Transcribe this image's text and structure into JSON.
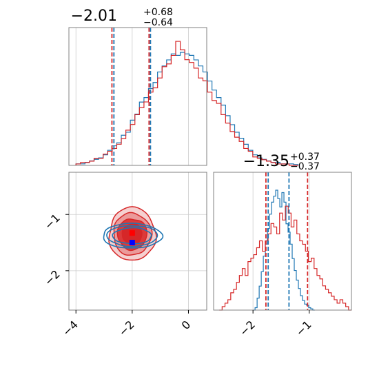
{
  "colors": {
    "series_a": "#1f77b4",
    "series_b": "#d62728",
    "grid": "#cccccc",
    "axis": "#808080",
    "marker_a": "#0000ff",
    "marker_b": "#ff0000"
  },
  "chart_data": [
    {
      "type": "histogram",
      "panel": "top-left",
      "title_main": "−2.01",
      "title_sup": "+0.68",
      "title_sub": "−0.64",
      "xlim": [
        -4.25,
        0.65
      ],
      "grid": true,
      "vlines": {
        "series_a": [
          -2.65,
          -1.35
        ],
        "series_b": [
          -2.72,
          -1.4
        ]
      },
      "series": [
        {
          "color": "#1f77b4",
          "edges": [
            -4.0,
            3.9
          ],
          "values": [
            0.01,
            0.01,
            0.02,
            0.03,
            0.04,
            0.05,
            0.07,
            0.1,
            0.13,
            0.15,
            0.2,
            0.22,
            0.3,
            0.34,
            0.42,
            0.45,
            0.51,
            0.55,
            0.62,
            0.66,
            0.7,
            0.74,
            0.73,
            0.75,
            0.74,
            0.73,
            0.7,
            0.66,
            0.62,
            0.56,
            0.5,
            0.45,
            0.4,
            0.33,
            0.27,
            0.22,
            0.18,
            0.14,
            0.1,
            0.07,
            0.05,
            0.04,
            0.03,
            0.02,
            0.02,
            0.01,
            0.01,
            0.01,
            0.005
          ]
        },
        {
          "color": "#d62728",
          "values": [
            0.01,
            0.02,
            0.02,
            0.03,
            0.05,
            0.05,
            0.08,
            0.1,
            0.12,
            0.15,
            0.19,
            0.25,
            0.29,
            0.36,
            0.41,
            0.45,
            0.52,
            0.55,
            0.62,
            0.7,
            0.72,
            0.78,
            0.88,
            0.82,
            0.75,
            0.73,
            0.69,
            0.62,
            0.6,
            0.52,
            0.46,
            0.44,
            0.36,
            0.3,
            0.24,
            0.2,
            0.17,
            0.12,
            0.1,
            0.06,
            0.05,
            0.04,
            0.03,
            0.02,
            0.01,
            0.01,
            0.01,
            0.0,
            0.0
          ]
        }
      ]
    },
    {
      "type": "histogram",
      "panel": "bottom-right",
      "title_main": "−1.35",
      "title_sup": "+0.37",
      "title_sub": "−0.37",
      "xlim": [
        -2.7,
        -0.25
      ],
      "xticks": [
        -2,
        -1
      ],
      "xtick_labels": [
        "−2",
        "−1"
      ],
      "grid": true,
      "vlines": {
        "series_a": [
          -1.73,
          -1.36
        ],
        "series_b": [
          -1.77,
          -1.03
        ]
      },
      "series": [
        {
          "color": "#1f77b4",
          "edges": [
            -2.0,
            -0.9
          ],
          "values": [
            0.0,
            0.02,
            0.1,
            0.2,
            0.32,
            0.45,
            0.55,
            0.68,
            0.8,
            0.9,
            0.95,
            1.0,
            0.93,
            0.86,
            0.98,
            0.9,
            0.72,
            0.65,
            0.55,
            0.43,
            0.33,
            0.25,
            0.18,
            0.12,
            0.08,
            0.05,
            0.04,
            0.02,
            0.01,
            0.0
          ]
        },
        {
          "color": "#d62728",
          "edges": [
            -2.6,
            -0.25
          ],
          "values": [
            0.0,
            0.01,
            0.02,
            0.03,
            0.05,
            0.06,
            0.08,
            0.1,
            0.12,
            0.1,
            0.14,
            0.15,
            0.16,
            0.18,
            0.2,
            0.17,
            0.2,
            0.22,
            0.25,
            0.24,
            0.22,
            0.28,
            0.26,
            0.3,
            0.28,
            0.24,
            0.26,
            0.22,
            0.2,
            0.19,
            0.17,
            0.14,
            0.15,
            0.12,
            0.1,
            0.09,
            0.07,
            0.06,
            0.05,
            0.04,
            0.03,
            0.02,
            0.03,
            0.02,
            0.01,
            0.0
          ]
        }
      ]
    },
    {
      "type": "contour",
      "panel": "bottom-left",
      "xlim": [
        -4.25,
        0.65
      ],
      "ylim": [
        -2.7,
        -0.25
      ],
      "xticks": [
        -4,
        -2,
        0
      ],
      "xtick_labels": [
        "−4",
        "−2",
        "0"
      ],
      "yticks": [
        -2,
        -1
      ],
      "ytick_labels": [
        "−2",
        "−1"
      ],
      "grid": true,
      "series": [
        {
          "color": "#d62728",
          "center": [
            -2.0,
            -1.35
          ],
          "levels": [
            {
              "rx": 1.65,
              "ry": 0.95,
              "fill": "#f5d0d0"
            },
            {
              "rx": 1.35,
              "ry": 0.75,
              "fill": "#eb9a9a"
            },
            {
              "rx": 1.05,
              "ry": 0.55,
              "fill": "#dc3a3a"
            },
            {
              "rx": 0.7,
              "ry": 0.37,
              "fill": "#d62728"
            }
          ],
          "marker": [
            -2.0,
            -1.33
          ]
        },
        {
          "color": "#1f77b4",
          "center": [
            -2.0,
            -1.38
          ],
          "levels": [
            {
              "rx": 1.75,
              "ry": 0.42
            },
            {
              "rx": 1.5,
              "ry": 0.35
            },
            {
              "rx": 1.15,
              "ry": 0.27
            }
          ],
          "marker": [
            -2.0,
            -1.5
          ]
        }
      ]
    }
  ]
}
